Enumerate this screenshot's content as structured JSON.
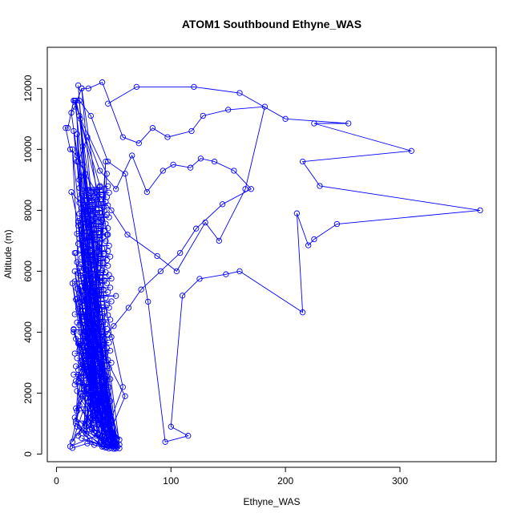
{
  "chart_data": {
    "type": "line",
    "title": "ATOM1 Southbound Ethyne_WAS",
    "xlabel": "Ethyne_WAS",
    "ylabel": "Altitude (m)",
    "xlim": [
      -8,
      384
    ],
    "ylim": [
      -250,
      13350
    ],
    "x_ticks": [
      0,
      100,
      200,
      300
    ],
    "y_ticks": [
      0,
      2000,
      4000,
      6000,
      8000,
      10000,
      12000
    ],
    "grid": false,
    "legend": "none",
    "markers": "open circles connected by lines",
    "color": "#0000ff",
    "series": [
      {
        "x": [
          14,
          27,
          46,
          22,
          41,
          18,
          33,
          50,
          16,
          29,
          44,
          20,
          38,
          55,
          24,
          12,
          35,
          48,
          19,
          31,
          43,
          26,
          17,
          40,
          52,
          21,
          34,
          47,
          15,
          28,
          42,
          60,
          23,
          37,
          18,
          45,
          30,
          14,
          25,
          49,
          36,
          20,
          43,
          28,
          16,
          39,
          51,
          22,
          33,
          46,
          19,
          29,
          41,
          58,
          24,
          13,
          36,
          47,
          21,
          32,
          44,
          18,
          27,
          40,
          53,
          23,
          35,
          15,
          42,
          30,
          48,
          20,
          37,
          26,
          45,
          17,
          33,
          50,
          22,
          39,
          46,
          28,
          19,
          41,
          34,
          24,
          52,
          16,
          38,
          29,
          44,
          21,
          35,
          48,
          18,
          31,
          43,
          26,
          14,
          40,
          55,
          23,
          36,
          47,
          20,
          32,
          45,
          28,
          17,
          42,
          50,
          25,
          37,
          19,
          44,
          30,
          22,
          39,
          48,
          27,
          41,
          16,
          34,
          46,
          21,
          33,
          43,
          29,
          18,
          38,
          52,
          24,
          36,
          15,
          45,
          31,
          26,
          40,
          49,
          22,
          34,
          44,
          20,
          37,
          28,
          17,
          42,
          51,
          25,
          35,
          47,
          19,
          32,
          43,
          27,
          14,
          39,
          48,
          23,
          36,
          45,
          21,
          30,
          41,
          18,
          34,
          50,
          26,
          38,
          46,
          24,
          33,
          16,
          43,
          29,
          40,
          55,
          20,
          37,
          47,
          22,
          31,
          44,
          27,
          15,
          38,
          49,
          25,
          35,
          42,
          19,
          32,
          46,
          28,
          17,
          40,
          53,
          23,
          36,
          48,
          21,
          33,
          45,
          26,
          18,
          41,
          30,
          50,
          24,
          37,
          16,
          43,
          29,
          47,
          20,
          34,
          44,
          27,
          39,
          22,
          52,
          35,
          19,
          46,
          31,
          25,
          42,
          17,
          38,
          48,
          23,
          33,
          45,
          28,
          21,
          40,
          36,
          15,
          44,
          30,
          49,
          26,
          37,
          20,
          43,
          32,
          18,
          41,
          24,
          47,
          34,
          27,
          39,
          22,
          45,
          16,
          35,
          50,
          29,
          42,
          25,
          38,
          19,
          46,
          31,
          23,
          44,
          28,
          36,
          21,
          48,
          33,
          17,
          40,
          26,
          43,
          30,
          52,
          24,
          37,
          20,
          45,
          35,
          27,
          41,
          18,
          47,
          32,
          22,
          39,
          29,
          44,
          25,
          36,
          16,
          42,
          34,
          48,
          23,
          38,
          21,
          46,
          30,
          19,
          43,
          27,
          40,
          33,
          49,
          24,
          37,
          20,
          45,
          31,
          26,
          41,
          18,
          35,
          44,
          28,
          39,
          22,
          47,
          32,
          25,
          42,
          17,
          36,
          45,
          29,
          21,
          40,
          34,
          24,
          46,
          30,
          19,
          38,
          27,
          43,
          23,
          35,
          20,
          41,
          31,
          26,
          44,
          18,
          37,
          28,
          42,
          22,
          33,
          45,
          25,
          39,
          30,
          21,
          43,
          27,
          36,
          19,
          40,
          24,
          34,
          46,
          23,
          32,
          44,
          20,
          38,
          26,
          42,
          29,
          35,
          22,
          41,
          28,
          45,
          24,
          37,
          20,
          43,
          31,
          26,
          39,
          21,
          44,
          33,
          25,
          40,
          22,
          46,
          30,
          35,
          27,
          42,
          20,
          38,
          45
        ],
        "y": [
          200,
          350,
          180,
          520,
          260,
          900,
          300,
          170,
          1200,
          450,
          220,
          1600,
          380,
          190,
          2100,
          250,
          600,
          200,
          2600,
          800,
          210,
          3100,
          1000,
          240,
          180,
          3600,
          1300,
          270,
          4100,
          1700,
          300,
          1900,
          4600,
          2000,
          5100,
          330,
          2400,
          5600,
          2800,
          360,
          3200,
          6100,
          390,
          3600,
          6600,
          420,
          210,
          7100,
          4000,
          450,
          7600,
          4400,
          480,
          2200,
          8100,
          8600,
          4800,
          510,
          9100,
          5200,
          540,
          9600,
          5600,
          570,
          230,
          10100,
          6000,
          10600,
          600,
          6400,
          630,
          11100,
          6800,
          660,
          7200,
          11600,
          690,
          250,
          12000,
          7600,
          720,
          8000,
          12100,
          750,
          8400,
          780,
          270,
          11600,
          8800,
          810,
          9200,
          11000,
          840,
          290,
          10500,
          870,
          9600,
          900,
          10000,
          930,
          310,
          9500,
          960,
          990,
          9000,
          1020,
          1050,
          8500,
          1080,
          1110,
          330,
          8000,
          1140,
          7500,
          1170,
          1200,
          7000,
          1230,
          350,
          6500,
          1260,
          6000,
          1290,
          1320,
          5500,
          1350,
          1380,
          5000,
          1410,
          1440,
          370,
          4500,
          1470,
          4000,
          1500,
          1530,
          3500,
          1560,
          390,
          3000,
          1590,
          1620,
          2500,
          1650,
          2000,
          1500,
          1680,
          410,
          1000,
          1710,
          1740,
          600,
          1770,
          1800,
          1830,
          400,
          1860,
          430,
          1890,
          1920,
          1950,
          1980,
          2010,
          2040,
          2070,
          2100,
          450,
          2130,
          2160,
          2190,
          2220,
          2250,
          2280,
          2310,
          2340,
          2370,
          470,
          2400,
          2430,
          2460,
          2490,
          2520,
          2550,
          2580,
          2610,
          2640,
          490,
          2670,
          2700,
          2730,
          2760,
          2790,
          2820,
          2850,
          2880,
          2910,
          510,
          2940,
          2970,
          3000,
          3030,
          3060,
          3090,
          3120,
          3150,
          3180,
          3210,
          530,
          3240,
          3270,
          3300,
          3330,
          3360,
          3390,
          3420,
          3450,
          3480,
          3510,
          3540,
          3570,
          550,
          3600,
          3630,
          3660,
          3690,
          3720,
          3750,
          3780,
          3810,
          3840,
          3870,
          3900,
          3930,
          3960,
          3990,
          4020,
          4050,
          4080,
          4110,
          4140,
          570,
          4170,
          4200,
          4230,
          4260,
          4290,
          4320,
          4350,
          4380,
          4410,
          4440,
          4470,
          4500,
          4530,
          4560,
          4590,
          4620,
          590,
          4650,
          4680,
          4710,
          4740,
          4770,
          4800,
          4830,
          4860,
          4890,
          4920,
          4950,
          4980,
          5010,
          5040,
          5070,
          610,
          5100,
          5130,
          5160,
          5190,
          5220,
          5250,
          5280,
          5310,
          5340,
          5370,
          5400,
          5430,
          5460,
          5490,
          5520,
          5550,
          5580,
          5610,
          5640,
          630,
          5670,
          5700,
          5730,
          5760,
          5790,
          5820,
          5850,
          5880,
          5910,
          5940,
          5970,
          6000,
          6030,
          6060,
          650,
          6090,
          6120,
          6150,
          6180,
          6210,
          6240,
          6270,
          6300,
          6330,
          6360,
          6390,
          6420,
          6450,
          6480,
          6510,
          6540,
          6570,
          6600,
          6630,
          6660,
          6690,
          6720,
          6750,
          6780,
          6810,
          6840,
          6870,
          6900,
          6930,
          6960,
          6990,
          7020,
          7050,
          7080,
          7110,
          7140,
          7170,
          7200,
          7230,
          7260,
          7290,
          7320,
          7350,
          7380,
          7410,
          7440,
          7470,
          7500,
          7530,
          7560,
          7590,
          7620,
          7650,
          7680,
          7710,
          7740,
          7770,
          7800,
          7830,
          7860,
          7890,
          7920,
          7950,
          7980,
          8010,
          8040,
          8070,
          8100,
          8130,
          8160,
          8190,
          8220,
          8250,
          8280,
          8310,
          8340,
          8370,
          8400,
          8430,
          8460,
          8490,
          8520,
          8550,
          8580,
          8610,
          8640,
          8670,
          8700,
          8730,
          8760,
          8790
        ]
      },
      {
        "x": [
          45,
          70,
          120,
          160,
          200,
          255,
          225,
          310,
          215,
          230,
          370,
          245,
          225,
          220,
          210,
          215,
          160,
          148,
          125,
          110,
          100,
          115,
          95,
          80,
          60,
          45,
          30,
          20,
          15,
          10,
          8,
          12,
          18,
          25,
          35,
          48,
          62,
          88,
          105,
          130,
          142,
          165,
          182,
          150,
          128,
          118,
          97,
          84,
          72,
          58,
          40,
          28,
          22,
          16,
          13,
          19,
          27,
          38,
          52,
          66,
          79,
          93,
          102,
          117,
          126,
          138,
          155,
          170,
          145,
          122,
          108,
          91,
          74,
          63,
          50,
          36,
          24,
          17,
          21,
          33
        ],
        "y": [
          11500,
          12050,
          12050,
          11850,
          11000,
          10850,
          10850,
          9950,
          9600,
          8800,
          8000,
          7550,
          7050,
          6850,
          7900,
          4650,
          6000,
          5900,
          5750,
          5200,
          900,
          600,
          400,
          5000,
          9200,
          9600,
          11100,
          11600,
          11600,
          10700,
          10700,
          10000,
          9800,
          9200,
          8600,
          8000,
          7200,
          6500,
          6000,
          7600,
          7000,
          8700,
          11400,
          11300,
          11100,
          10600,
          10400,
          10700,
          10200,
          10400,
          12200,
          12000,
          12000,
          11400,
          11200,
          9600,
          10400,
          9300,
          8700,
          9800,
          8600,
          9300,
          9500,
          9400,
          9700,
          9600,
          9300,
          8700,
          8200,
          7400,
          6600,
          6000,
          5400,
          4800,
          4200,
          3600,
          3000,
          2400,
          1800,
          1200
        ]
      }
    ]
  }
}
